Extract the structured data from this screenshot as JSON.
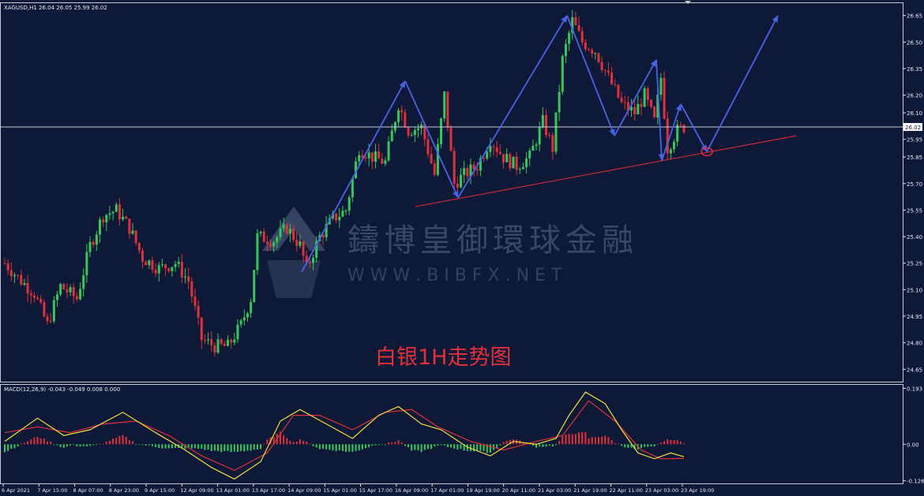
{
  "header": {
    "symbol_line": "XAGUSD,H1  26.04 26.05 25.99 26.02",
    "current_price_label": "26.02"
  },
  "watermark": {
    "name": "鑄博皇御環球金融",
    "url": "W W W . B I B F X . N E T"
  },
  "annotation": {
    "text": "白银1H走势图",
    "color": "#e0303a"
  },
  "colors": {
    "background": "#0e1938",
    "bull": "#36c75a",
    "bear": "#e0303a",
    "zigzag": "#4a62e8",
    "trendline": "#c8293a",
    "macd_main": "#f0e040",
    "macd_signal": "#e0303a",
    "axis_text": "#e6e9f2",
    "price_line": "#c8cbd6"
  },
  "chart_data": [
    {
      "type": "candlestick",
      "title": "XAGUSD,H1",
      "ohlc_last": {
        "open": 26.04,
        "high": 26.05,
        "low": 25.99,
        "close": 26.02
      },
      "ylim": [
        24.58,
        26.72
      ],
      "y_ticks": [
        "26.65",
        "26.50",
        "26.35",
        "26.20",
        "26.10",
        "25.95",
        "25.85",
        "25.70",
        "25.55",
        "25.40",
        "25.25",
        "25.10",
        "24.95",
        "24.80",
        "24.65"
      ],
      "x_ticks": [
        "6 Apr 2021",
        "7 Apr 15:00",
        "8 Apr 07:00",
        "8 Apr 23:00",
        "9 Apr 15:00",
        "12 Apr 09:00",
        "13 Apr 01:00",
        "13 Apr 17:00",
        "14 Apr 09:00",
        "15 Apr 01:00",
        "15 Apr 17:00",
        "16 Apr 09:00",
        "17 Apr 01:00",
        "19 Apr 19:00",
        "20 Apr 11:00",
        "21 Apr 03:00",
        "21 Apr 19:00",
        "22 Apr 11:00",
        "23 Apr 03:00",
        "23 Apr 19:00"
      ],
      "bar_count": 208,
      "path_points": [
        {
          "bar": 0,
          "close": 25.25
        },
        {
          "bar": 5,
          "close": 25.15
        },
        {
          "bar": 9,
          "close": 25.08
        },
        {
          "bar": 13,
          "close": 24.9
        },
        {
          "bar": 17,
          "close": 25.12
        },
        {
          "bar": 22,
          "close": 25.05
        },
        {
          "bar": 26,
          "close": 25.35
        },
        {
          "bar": 30,
          "close": 25.52
        },
        {
          "bar": 34,
          "close": 25.55
        },
        {
          "bar": 38,
          "close": 25.45
        },
        {
          "bar": 42,
          "close": 25.28
        },
        {
          "bar": 47,
          "close": 25.22
        },
        {
          "bar": 52,
          "close": 25.25
        },
        {
          "bar": 56,
          "close": 25.15
        },
        {
          "bar": 60,
          "close": 24.82
        },
        {
          "bar": 64,
          "close": 24.78
        },
        {
          "bar": 68,
          "close": 24.78
        },
        {
          "bar": 72,
          "close": 24.9
        },
        {
          "bar": 75,
          "close": 25.05
        },
        {
          "bar": 77,
          "close": 25.4
        },
        {
          "bar": 82,
          "close": 25.38
        },
        {
          "bar": 86,
          "close": 25.45
        },
        {
          "bar": 90,
          "close": 25.35
        },
        {
          "bar": 92,
          "close": 25.22
        },
        {
          "bar": 96,
          "close": 25.4
        },
        {
          "bar": 100,
          "close": 25.5
        },
        {
          "bar": 104,
          "close": 25.55
        },
        {
          "bar": 108,
          "close": 25.9
        },
        {
          "bar": 112,
          "close": 25.85
        },
        {
          "bar": 116,
          "close": 25.82
        },
        {
          "bar": 120,
          "close": 26.15
        },
        {
          "bar": 123,
          "close": 26.0
        },
        {
          "bar": 127,
          "close": 26.02
        },
        {
          "bar": 131,
          "close": 25.75
        },
        {
          "bar": 134,
          "close": 26.2
        },
        {
          "bar": 137,
          "close": 25.7
        },
        {
          "bar": 140,
          "close": 25.75
        },
        {
          "bar": 144,
          "close": 25.8
        },
        {
          "bar": 148,
          "close": 25.95
        },
        {
          "bar": 152,
          "close": 25.85
        },
        {
          "bar": 156,
          "close": 25.8
        },
        {
          "bar": 160,
          "close": 25.85
        },
        {
          "bar": 164,
          "close": 26.05
        },
        {
          "bar": 167,
          "close": 25.9
        },
        {
          "bar": 170,
          "close": 26.4
        },
        {
          "bar": 173,
          "close": 26.62
        },
        {
          "bar": 176,
          "close": 26.5
        },
        {
          "bar": 180,
          "close": 26.45
        },
        {
          "bar": 184,
          "close": 26.3
        },
        {
          "bar": 188,
          "close": 26.15
        },
        {
          "bar": 192,
          "close": 26.1
        },
        {
          "bar": 195,
          "close": 26.2
        },
        {
          "bar": 198,
          "close": 26.05
        },
        {
          "bar": 200,
          "close": 26.3
        },
        {
          "bar": 202,
          "close": 25.9
        },
        {
          "bar": 205,
          "close": 26.0
        },
        {
          "bar": 207,
          "close": 26.02
        }
      ],
      "zigzag": [
        {
          "x": "14 Apr 09:00",
          "y": 25.2
        },
        {
          "x": "16 Apr 09:00",
          "y": 26.28
        },
        {
          "x": "19 Apr 19:00",
          "y": 25.62
        },
        {
          "x": "21 Apr 19:00",
          "y": 26.65
        },
        {
          "x": "22 Apr 11:00",
          "y": 25.97
        },
        {
          "x": "23 Apr 03:00",
          "y": 26.4
        },
        {
          "x": "23 Apr 03:00",
          "y": 25.83
        },
        {
          "x": "23 Apr 19:00",
          "y": 26.15
        },
        {
          "x": "forecast",
          "y": 25.88
        },
        {
          "x": "forecast",
          "y": 26.65
        }
      ],
      "trendline": {
        "from": {
          "x": "16 Apr 09:00",
          "y": 25.57
        },
        "to": {
          "x": "forecast",
          "y": 25.97
        }
      },
      "current_price": 26.02
    },
    {
      "type": "macd",
      "title": "MACD(12,26,9) -0.043 -0.049 0.008 0.000",
      "params": [
        12,
        26,
        9
      ],
      "values": {
        "main": -0.043,
        "signal": -0.049,
        "hist_a": 0.008,
        "hist_b": 0.0
      },
      "ylim": [
        -0.135,
        0.205
      ],
      "y_ticks": [
        "0.193",
        "0.00",
        "-0.126"
      ],
      "main_points": [
        {
          "bar": 0,
          "v": 0.01
        },
        {
          "bar": 10,
          "v": 0.09
        },
        {
          "bar": 18,
          "v": 0.03
        },
        {
          "bar": 26,
          "v": 0.05
        },
        {
          "bar": 36,
          "v": 0.11
        },
        {
          "bar": 46,
          "v": 0.04
        },
        {
          "bar": 55,
          "v": -0.02
        },
        {
          "bar": 63,
          "v": -0.08
        },
        {
          "bar": 70,
          "v": -0.12
        },
        {
          "bar": 78,
          "v": -0.06
        },
        {
          "bar": 84,
          "v": 0.08
        },
        {
          "bar": 90,
          "v": 0.12
        },
        {
          "bar": 98,
          "v": 0.07
        },
        {
          "bar": 106,
          "v": 0.02
        },
        {
          "bar": 114,
          "v": 0.1
        },
        {
          "bar": 120,
          "v": 0.13
        },
        {
          "bar": 127,
          "v": 0.07
        },
        {
          "bar": 133,
          "v": 0.05
        },
        {
          "bar": 141,
          "v": -0.01
        },
        {
          "bar": 148,
          "v": -0.04
        },
        {
          "bar": 155,
          "v": 0.01
        },
        {
          "bar": 162,
          "v": 0.0
        },
        {
          "bar": 168,
          "v": 0.02
        },
        {
          "bar": 172,
          "v": 0.1
        },
        {
          "bar": 177,
          "v": 0.18
        },
        {
          "bar": 183,
          "v": 0.14
        },
        {
          "bar": 188,
          "v": 0.05
        },
        {
          "bar": 193,
          "v": -0.03
        },
        {
          "bar": 198,
          "v": -0.05
        },
        {
          "bar": 203,
          "v": -0.03
        },
        {
          "bar": 207,
          "v": -0.043
        }
      ],
      "signal_points": [
        {
          "bar": 0,
          "v": 0.04
        },
        {
          "bar": 10,
          "v": 0.06
        },
        {
          "bar": 20,
          "v": 0.04
        },
        {
          "bar": 30,
          "v": 0.07
        },
        {
          "bar": 40,
          "v": 0.08
        },
        {
          "bar": 50,
          "v": 0.03
        },
        {
          "bar": 60,
          "v": -0.04
        },
        {
          "bar": 70,
          "v": -0.09
        },
        {
          "bar": 80,
          "v": -0.03
        },
        {
          "bar": 88,
          "v": 0.1
        },
        {
          "bar": 96,
          "v": 0.1
        },
        {
          "bar": 106,
          "v": 0.05
        },
        {
          "bar": 116,
          "v": 0.11
        },
        {
          "bar": 124,
          "v": 0.12
        },
        {
          "bar": 132,
          "v": 0.06
        },
        {
          "bar": 142,
          "v": 0.01
        },
        {
          "bar": 152,
          "v": -0.02
        },
        {
          "bar": 162,
          "v": 0.01
        },
        {
          "bar": 170,
          "v": 0.03
        },
        {
          "bar": 178,
          "v": 0.15
        },
        {
          "bar": 186,
          "v": 0.08
        },
        {
          "bar": 194,
          "v": -0.02
        },
        {
          "bar": 200,
          "v": -0.05
        },
        {
          "bar": 207,
          "v": -0.049
        }
      ]
    }
  ]
}
